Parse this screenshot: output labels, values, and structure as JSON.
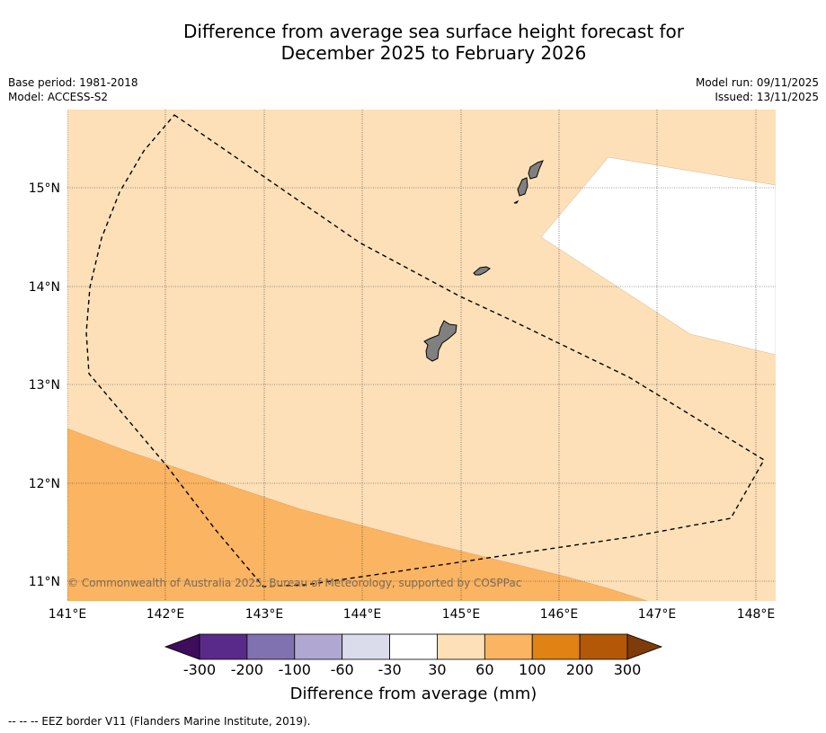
{
  "title_line1": "Difference from average sea surface height forecast for",
  "title_line2": "December 2025 to February 2026",
  "base_period": "Base period: 1981-2018",
  "model": "Model: ACCESS-S2",
  "model_run": "Model run: 09/11/2025",
  "issued": "Issued: 13/11/2025",
  "copyright": "© Commonwealth of Australia 2025, Bureau of Meteorology, supported by COSPPac",
  "footnote": "--  --  -- EEZ border V11 (Flanders Marine Institute, 2019).",
  "map": {
    "lon_range": [
      141.0,
      148.2
    ],
    "lat_range": [
      10.8,
      15.8
    ],
    "lon_ticks": [
      "141°E",
      "142°E",
      "143°E",
      "144°E",
      "145°E",
      "146°E",
      "147°E",
      "148°E"
    ],
    "lat_ticks": [
      "11°N",
      "12°N",
      "13°N",
      "14°N",
      "15°N"
    ],
    "land_color": "#808080",
    "eez_border": "dashed black line"
  },
  "colorbar": {
    "title": "Difference from average (mm)",
    "labels": [
      "-300",
      "-200",
      "-100",
      "-60",
      "-30",
      "30",
      "60",
      "100",
      "200",
      "300"
    ],
    "colors": [
      "#3f0d5c",
      "#5a2a8a",
      "#8071b0",
      "#b0a8d2",
      "#dadbeb",
      "#ffffff",
      "#fde0b8",
      "#fbb461",
      "#e08214",
      "#b35806",
      "#7f3b08"
    ]
  }
}
